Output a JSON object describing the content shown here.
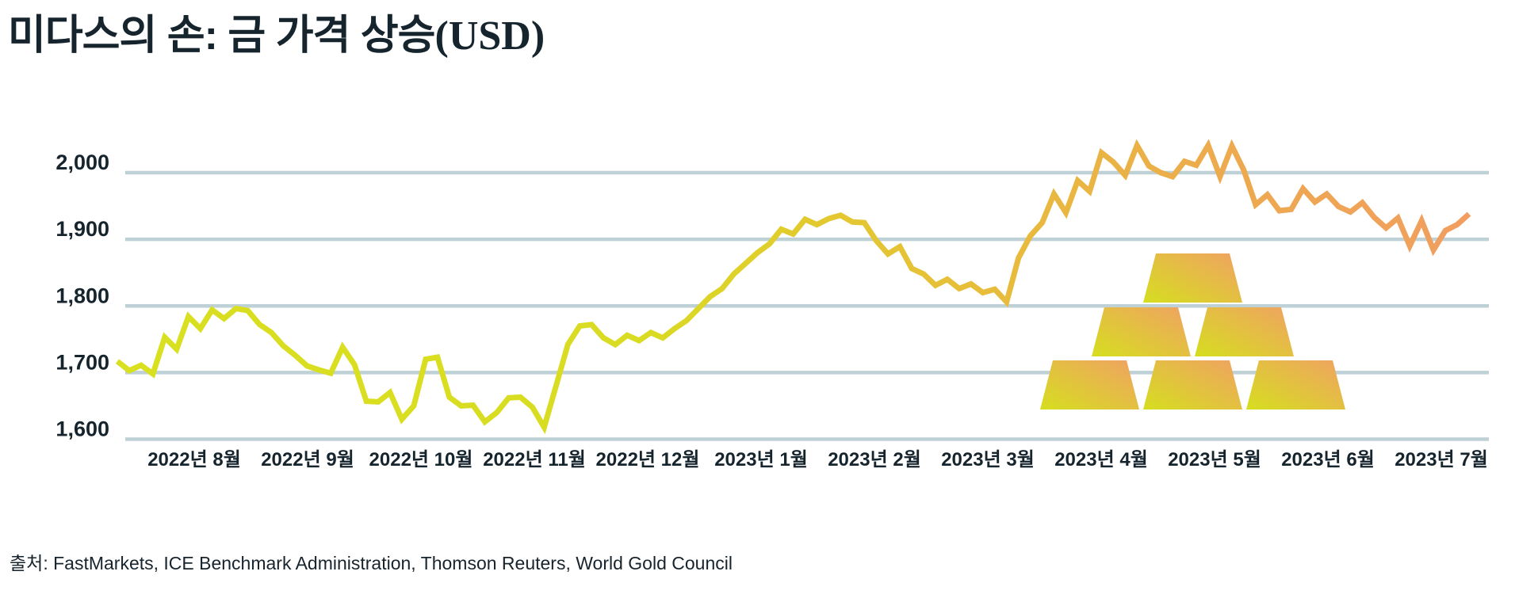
{
  "title": {
    "main": "미다스의 손: 금 가격 상승",
    "suffix": "(USD)"
  },
  "source": "출처: FastMarkets, ICE Benchmark Administration, Thomson Reuters, World Gold Council",
  "colors": {
    "text": "#16242e",
    "gridline": "#bed1d6",
    "background": "#ffffff",
    "line_gradient": [
      "#d9e01f",
      "#d9dc22",
      "#e3c92f",
      "#e8b93f",
      "#edaa4e",
      "#f19e60"
    ],
    "bar_gradient": [
      "#d6de1f",
      "#f0a263"
    ]
  },
  "chart_data": {
    "type": "line",
    "title": "미다스의 손: 금 가격 상승(USD)",
    "xlabel": "",
    "ylabel": "",
    "ylim": [
      1600,
      2050
    ],
    "grid": "horizontal",
    "legend": "none",
    "yticks": [
      {
        "value": 2000,
        "label": "2,000"
      },
      {
        "value": 1900,
        "label": "1,900"
      },
      {
        "value": 1800,
        "label": "1,800"
      },
      {
        "value": 1700,
        "label": "1,700"
      },
      {
        "value": 1600,
        "label": "1,600"
      }
    ],
    "x_tick_labels": [
      "2022년 8월",
      "2022년 9월",
      "2022년 10월",
      "2022년 11월",
      "2022년 12월",
      "2023년 1월",
      "2023년 2월",
      "2023년 3월",
      "2023년 4월",
      "2023년 5월",
      "2023년 6월",
      "2023년 7월"
    ],
    "x_range_note": "mid-July 2022 to mid-July 2023, samples evenly spaced",
    "values": [
      1717,
      1703,
      1711,
      1698,
      1753,
      1735,
      1784,
      1766,
      1794,
      1781,
      1796,
      1793,
      1772,
      1760,
      1740,
      1726,
      1710,
      1704,
      1699,
      1738,
      1712,
      1657,
      1656,
      1670,
      1630,
      1650,
      1720,
      1723,
      1663,
      1650,
      1651,
      1626,
      1640,
      1662,
      1663,
      1648,
      1618,
      1680,
      1742,
      1770,
      1772,
      1752,
      1742,
      1756,
      1748,
      1760,
      1752,
      1766,
      1778,
      1796,
      1814,
      1826,
      1848,
      1864,
      1880,
      1893,
      1915,
      1908,
      1930,
      1922,
      1931,
      1936,
      1926,
      1925,
      1898,
      1878,
      1889,
      1856,
      1848,
      1831,
      1840,
      1826,
      1833,
      1820,
      1825,
      1806,
      1872,
      1905,
      1925,
      1968,
      1940,
      1988,
      1972,
      2030,
      2016,
      1996,
      2041,
      2010,
      2000,
      1994,
      2017,
      2011,
      2041,
      1994,
      2040,
      2004,
      1952,
      1967,
      1943,
      1945,
      1976,
      1956,
      1968,
      1949,
      1941,
      1955,
      1933,
      1917,
      1932,
      1890,
      1928,
      1884,
      1913,
      1922,
      1938
    ]
  },
  "decoration": {
    "gold_bar_pyramid": {
      "rows_bottom_to_top": [
        3,
        2,
        1
      ],
      "description": "stacked gold-bar icons"
    }
  }
}
